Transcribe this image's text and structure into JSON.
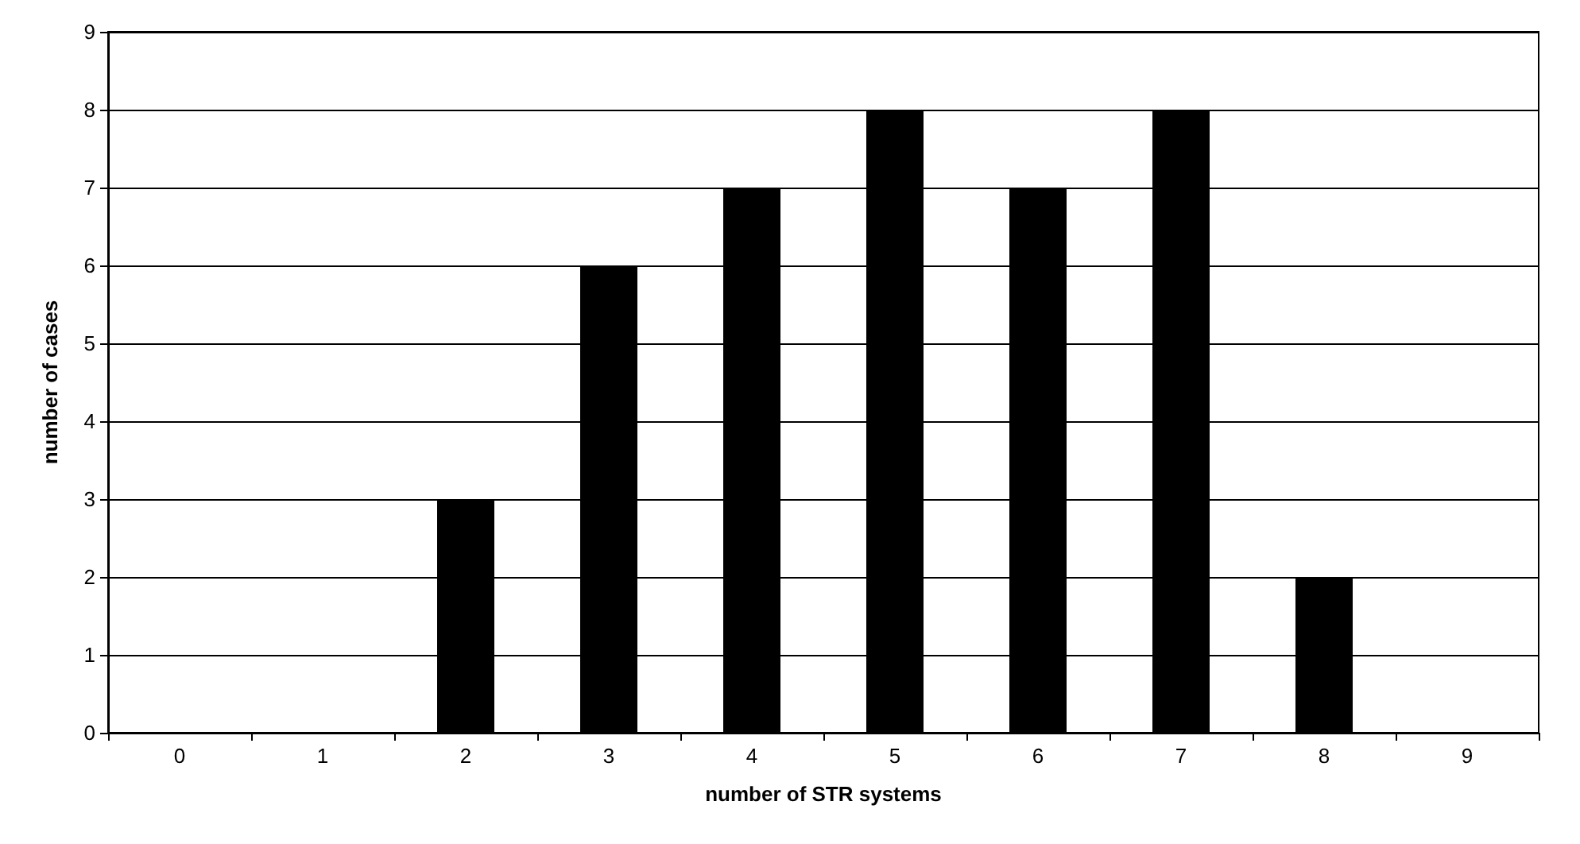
{
  "chart_data": {
    "type": "bar",
    "xlabel": "number of STR systems",
    "ylabel": "number of cases",
    "categories": [
      "0",
      "1",
      "2",
      "3",
      "4",
      "5",
      "6",
      "7",
      "8",
      "9"
    ],
    "values": [
      0,
      0,
      3,
      6,
      7,
      8,
      7,
      8,
      2,
      0
    ],
    "color": "#000000",
    "ylim": [
      0,
      9
    ],
    "yticks": [
      0,
      1,
      2,
      3,
      4,
      5,
      6,
      7,
      8,
      9
    ],
    "grid": "y"
  }
}
